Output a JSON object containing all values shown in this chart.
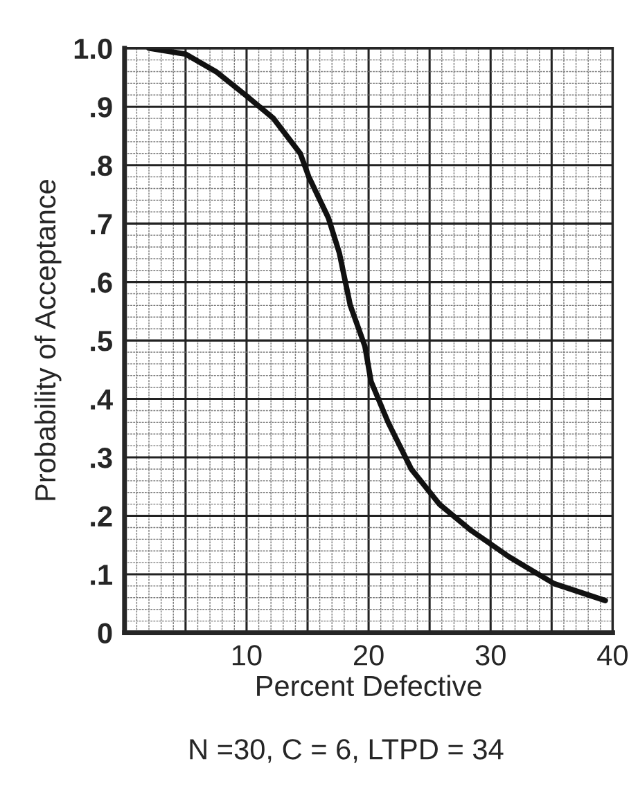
{
  "chart_data": {
    "type": "line",
    "xlabel": "Percent Defective",
    "ylabel": "Probability of Acceptance",
    "annotations": [
      "N =30, C = 6, LTPD = 34"
    ],
    "series": [
      {
        "color": "#111111",
        "x": [
          2,
          5,
          7.5,
          9.9,
          12.2,
          14.4,
          15.1,
          16.7,
          17.6,
          18.5,
          19.7,
          20.2,
          21.6,
          23.5,
          25.8,
          28.4,
          31.5,
          35.2,
          39.4
        ],
        "values": [
          1.0,
          0.99,
          0.96,
          0.92,
          0.88,
          0.82,
          0.78,
          0.71,
          0.65,
          0.56,
          0.49,
          0.43,
          0.36,
          0.28,
          0.22,
          0.175,
          0.13,
          0.084,
          0.055
        ]
      }
    ],
    "xlim": [
      0,
      40
    ],
    "ylim": [
      0,
      1.0
    ],
    "xticks": [
      {
        "value": 5,
        "label": null
      },
      10,
      {
        "value": 15,
        "label": null
      },
      20,
      {
        "value": 25,
        "label": null
      },
      30,
      {
        "value": 35,
        "label": null
      },
      40
    ],
    "yticks": [
      {
        "value": 0,
        "label": "0"
      },
      {
        "value": 0.1,
        "label": ".1"
      },
      {
        "value": 0.2,
        "label": ".2"
      },
      {
        "value": 0.3,
        "label": ".3"
      },
      {
        "value": 0.4,
        "label": ".4"
      },
      {
        "value": 0.5,
        "label": ".5"
      },
      {
        "value": 0.6,
        "label": ".6"
      },
      {
        "value": 0.7,
        "label": ".7"
      },
      {
        "value": 0.8,
        "label": ".8"
      },
      {
        "value": 0.9,
        "label": ".9"
      },
      {
        "value": 1.0,
        "label": "1.0"
      }
    ],
    "grid": true,
    "line_style": "solid",
    "marker": "none"
  }
}
